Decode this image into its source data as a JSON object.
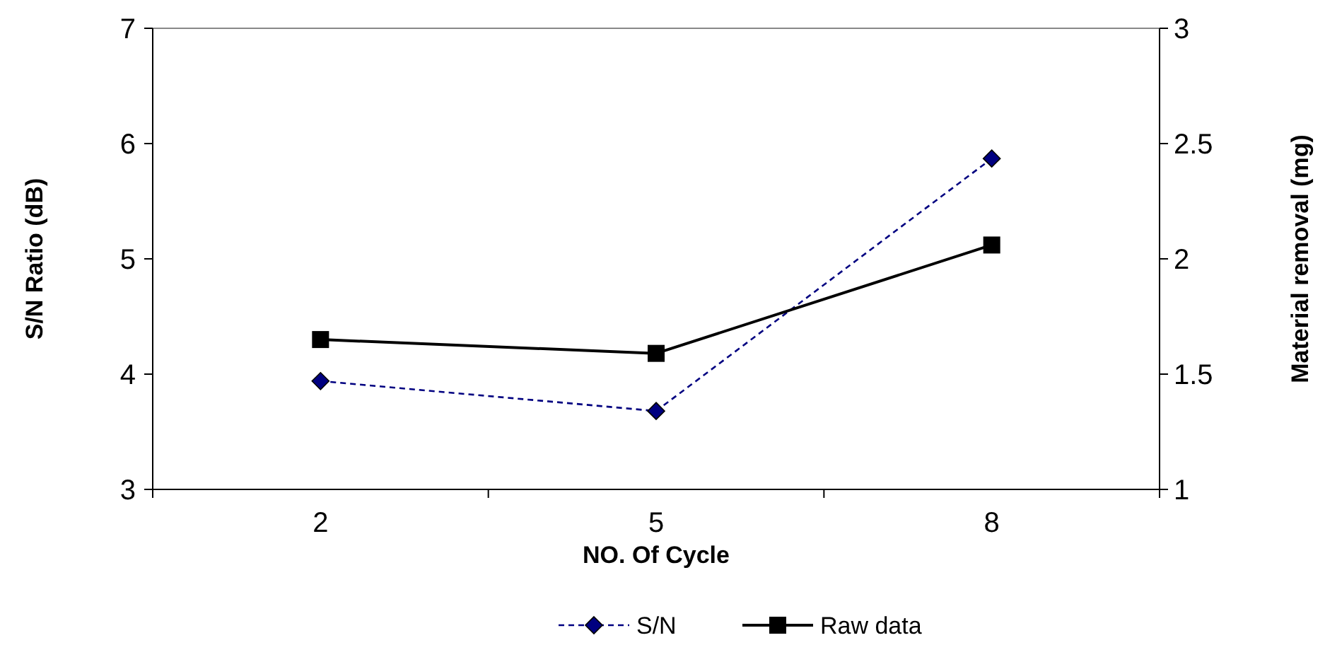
{
  "chart_data": {
    "type": "line",
    "xlabel": "NO. Of Cycle",
    "ylabel": "S/N Ratio (dB)",
    "y2label": "Material removal (mg)",
    "categories": [
      "2",
      "5",
      "8"
    ],
    "series": [
      {
        "name": "S/N",
        "color": "#000080",
        "values": [
          3.94,
          3.68,
          5.87
        ],
        "marker": "diamond",
        "line_style": "dashed"
      },
      {
        "name": "Raw data",
        "color": "#000000",
        "values": [
          1.65,
          1.59,
          2.06
        ],
        "marker": "square",
        "line_style": "solid",
        "axis": "y2"
      }
    ],
    "ylim": [
      3,
      7
    ],
    "yticks": [
      3,
      4,
      5,
      6,
      7
    ],
    "y2lim": [
      1,
      3
    ],
    "y2ticks": [
      1,
      1.5,
      2,
      2.5,
      3
    ],
    "grid": false,
    "legend": "bottom"
  }
}
